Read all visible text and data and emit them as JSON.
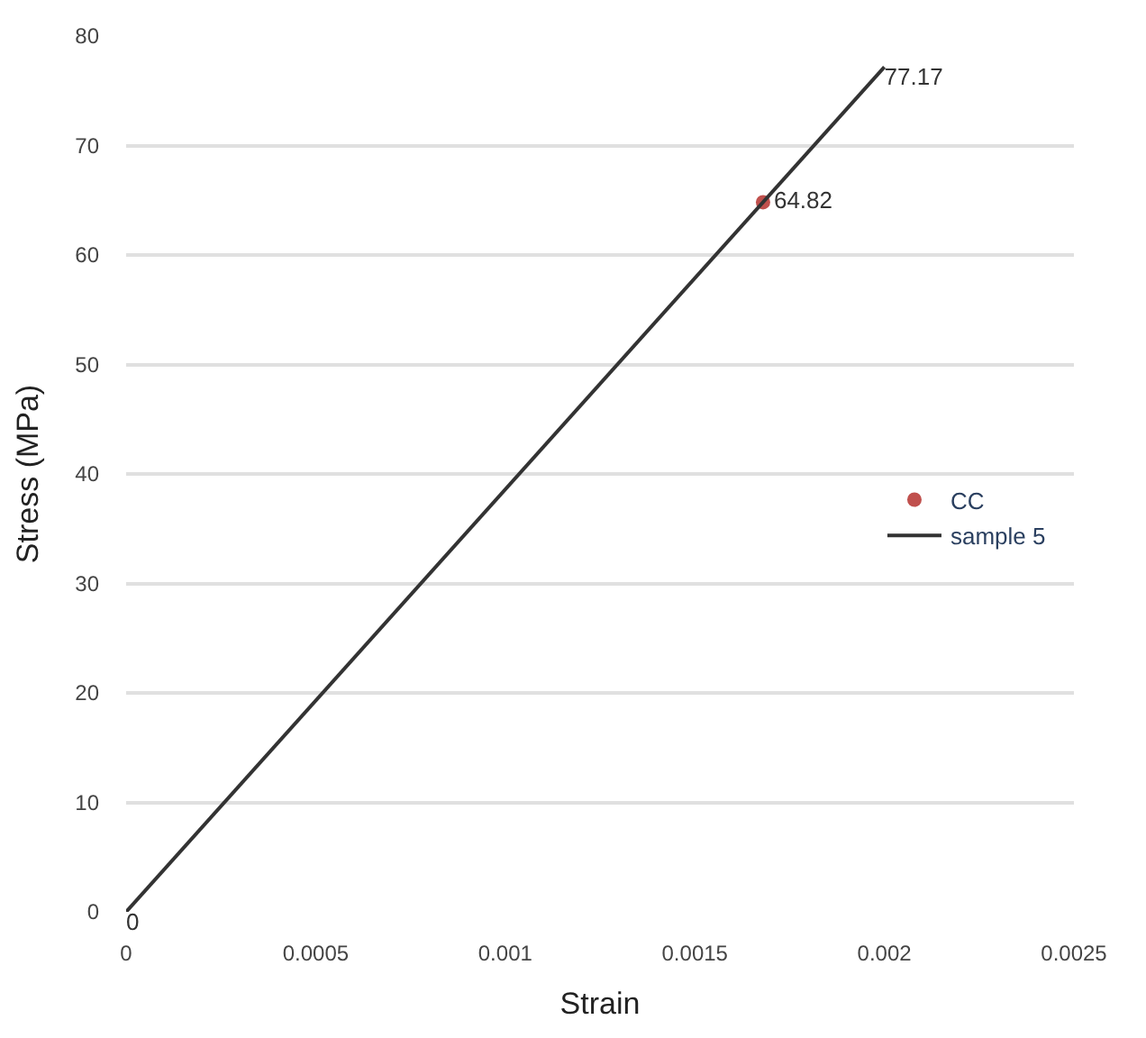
{
  "chart_data": {
    "type": "line",
    "xlabel": "Strain",
    "ylabel": "Stress (MPa)",
    "series": [
      {
        "name": "CC",
        "type": "scatter",
        "color": "#c0504d",
        "marker": "circle",
        "x": [
          0.00168
        ],
        "values": [
          64.82
        ],
        "value_labels": [
          "64.82"
        ]
      },
      {
        "name": "sample 5",
        "color": "#333333",
        "marker": "none",
        "x": [
          0,
          0.002
        ],
        "values": [
          0,
          77.17
        ],
        "value_labels": [
          "0",
          "77.17"
        ]
      }
    ],
    "xlim": [
      0,
      0.0025
    ],
    "xticks": [
      0,
      0.0005,
      0.001,
      0.0015,
      0.002,
      0.0025
    ],
    "ylim": [
      0,
      80
    ],
    "yticks": [
      0,
      10,
      20,
      30,
      40,
      50,
      60,
      70,
      80
    ],
    "grid": "y",
    "legend": "right"
  }
}
